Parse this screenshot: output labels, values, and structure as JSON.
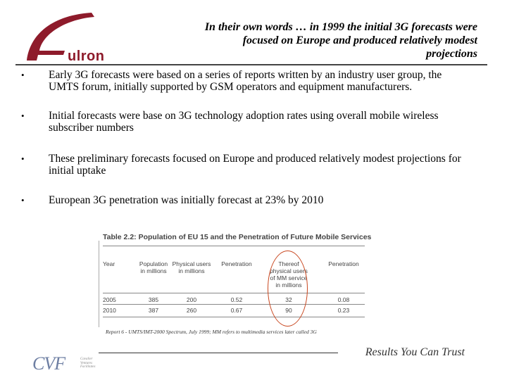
{
  "header": {
    "logo_text": "ulron",
    "title_lines": [
      "In their own words … in 1999 the initial 3G forecasts were",
      "focused on Europe and produced relatively modest",
      "projections"
    ]
  },
  "bullets": [
    "Early 3G forecasts were based on a series of reports written by an industry user group, the UMTS forum, initially supported by GSM operators and equipment manufacturers.",
    "Initial forecasts were base on 3G technology adoption rates using overall mobile wireless subscriber numbers",
    "These preliminary forecasts focused on Europe and produced relatively modest projections for initial uptake",
    "European 3G penetration was initially forecast at 23% by 2010"
  ],
  "table": {
    "title": "Table 2.2: Population of EU 15 and the Penetration of Future Mobile Services",
    "headers": {
      "year": "Year",
      "population": [
        "Population",
        "in millions"
      ],
      "physical_users": [
        "Physical users",
        "in millions"
      ],
      "penetration1": "Penetration",
      "thereof": [
        "Thereof",
        "physical users",
        "of MM service",
        "in millions"
      ],
      "penetration2": "Penetration"
    },
    "rows": [
      {
        "year": "2005",
        "population": "385",
        "physical": "200",
        "pen1": "0.52",
        "thereof": "32",
        "pen2": "0.08"
      },
      {
        "year": "2010",
        "population": "387",
        "physical": "260",
        "pen1": "0.67",
        "thereof": "90",
        "pen2": "0.23"
      }
    ]
  },
  "source_note": "Report 6 - UMTS/IMT-2000 Spectrum, July 1999; MM refers to multimedia services later called 3G",
  "footer": {
    "tagline": "Results You Can Trust",
    "logo_text": "CVF",
    "logo_small_lines": [
      "Cavalier",
      "Ventures",
      "Facilitates"
    ]
  },
  "colors": {
    "logo_red": "#8e1b2b",
    "highlight_oval": "#c8461e",
    "cvf_blue": "#6e7fa3"
  }
}
